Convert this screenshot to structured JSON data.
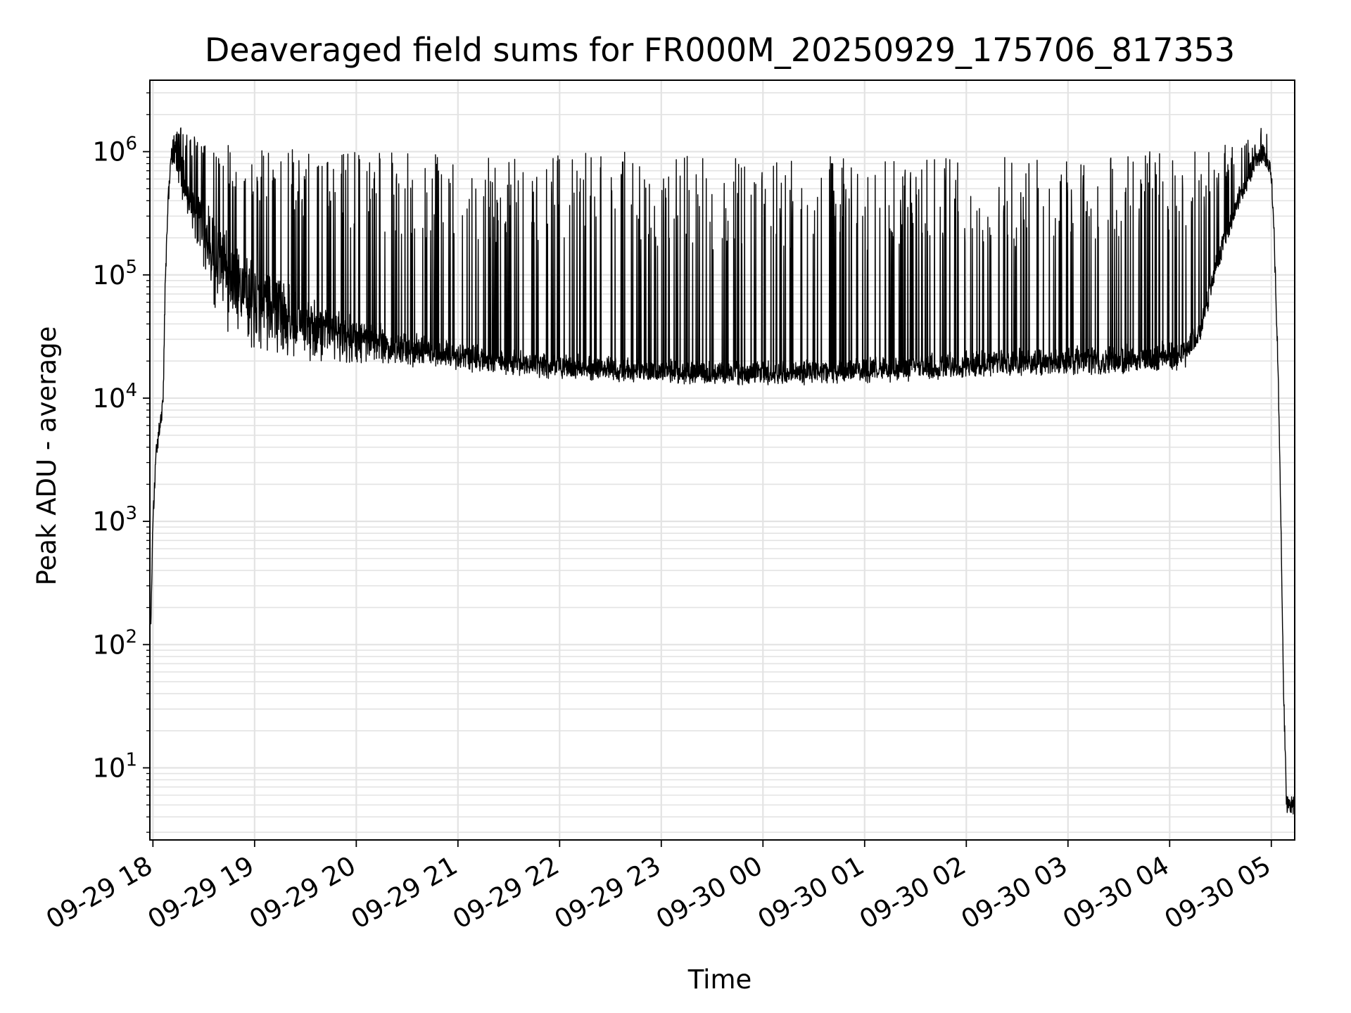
{
  "chart_data": {
    "type": "line",
    "title": "Deaveraged field sums for FR000M_20250929_175706_817353",
    "xlabel": "Time",
    "ylabel": "Peak ADU - average",
    "yscale": "log",
    "grid": true,
    "line_color": "#000000",
    "grid_color": "#e3e3e3",
    "x_unit": "hours since 09-29 18:00",
    "xlim": [
      -0.03,
      11.23
    ],
    "ylim": [
      2.6,
      3800000
    ],
    "xticks": [
      {
        "value": 0,
        "label": "09-29 18"
      },
      {
        "value": 1,
        "label": "09-29 19"
      },
      {
        "value": 2,
        "label": "09-29 20"
      },
      {
        "value": 3,
        "label": "09-29 21"
      },
      {
        "value": 4,
        "label": "09-29 22"
      },
      {
        "value": 5,
        "label": "09-29 23"
      },
      {
        "value": 6,
        "label": "09-30 00"
      },
      {
        "value": 7,
        "label": "09-30 01"
      },
      {
        "value": 8,
        "label": "09-30 02"
      },
      {
        "value": 9,
        "label": "09-30 03"
      },
      {
        "value": 10,
        "label": "09-30 04"
      },
      {
        "value": 11,
        "label": "09-30 05"
      }
    ],
    "yticks": [
      {
        "value": 10,
        "base": "10",
        "exp": "1"
      },
      {
        "value": 100,
        "base": "10",
        "exp": "2"
      },
      {
        "value": 1000,
        "base": "10",
        "exp": "3"
      },
      {
        "value": 10000,
        "base": "10",
        "exp": "4"
      },
      {
        "value": 100000,
        "base": "10",
        "exp": "5"
      },
      {
        "value": 1000000,
        "base": "10",
        "exp": "6"
      }
    ],
    "series": [
      {
        "name": "deaveraged field sum",
        "envelope": {
          "x": [
            -0.02,
            0.0,
            0.03,
            0.08,
            0.1,
            0.12,
            0.15,
            0.18,
            0.22,
            0.27,
            0.32,
            0.4,
            0.5,
            0.6,
            0.7,
            0.8,
            0.9,
            1.0,
            1.2,
            1.5,
            2.0,
            2.5,
            3.0,
            3.5,
            4.0,
            4.5,
            5.0,
            5.5,
            6.0,
            6.5,
            7.0,
            7.5,
            8.0,
            8.5,
            9.0,
            9.5,
            10.0,
            10.15,
            10.3,
            10.45,
            10.6,
            10.75,
            10.85,
            10.93,
            11.0,
            11.03,
            11.06,
            11.09,
            11.12,
            11.15,
            11.17,
            11.22
          ],
          "base": [
            150,
            1000,
            3500,
            7000,
            9000,
            80000,
            400000,
            1000000,
            1200000,
            1000000,
            700000,
            500000,
            400000,
            300000,
            220000,
            170000,
            150000,
            110000,
            90000,
            60000,
            40000,
            30000,
            25000,
            22000,
            20000,
            19000,
            18000,
            17000,
            17000,
            18000,
            19000,
            20000,
            21000,
            22000,
            23000,
            24000,
            25000,
            26000,
            40000,
            120000,
            300000,
            600000,
            900000,
            1000000,
            700000,
            200000,
            30000,
            2000,
            50,
            5,
            5,
            5
          ],
          "floor": [
            150,
            1000,
            3500,
            7000,
            9000,
            80000,
            400000,
            800000,
            600000,
            450000,
            350000,
            200000,
            100000,
            50000,
            35000,
            30000,
            28000,
            25000,
            22000,
            20000,
            19000,
            18000,
            17000,
            16000,
            15000,
            14500,
            14000,
            14000,
            14000,
            14000,
            14000,
            14500,
            15000,
            15000,
            15500,
            16000,
            17000,
            18000,
            30000,
            100000,
            250000,
            500000,
            800000,
            900000,
            600000,
            150000,
            20000,
            1500,
            40,
            5,
            5,
            5
          ],
          "peak": [
            150,
            1000,
            3500,
            7000,
            9000,
            80000,
            400000,
            1100000,
            1500000,
            1600000,
            1500000,
            1400000,
            1300000,
            1200000,
            1200000,
            1150000,
            1100000,
            1100000,
            1100000,
            1050000,
            1000000,
            1000000,
            950000,
            900000,
            950000,
            1000000,
            1000000,
            950000,
            900000,
            1000000,
            900000,
            850000,
            900000,
            900000,
            1000000,
            1050000,
            1000000,
            1100000,
            1100000,
            1150000,
            1200000,
            1250000,
            1300000,
            2000000,
            800000,
            200000,
            30000,
            2000,
            50,
            5,
            5,
            5
          ]
        }
      }
    ]
  }
}
